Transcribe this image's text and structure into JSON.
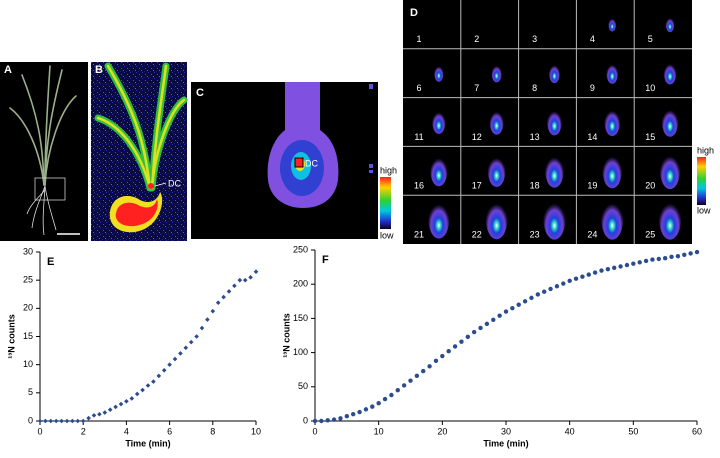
{
  "panel_labels": [
    "A",
    "B",
    "C",
    "D"
  ],
  "panel_b": {
    "annotation": "DC"
  },
  "panel_c": {
    "annotation": "DC",
    "scale_high": "high",
    "scale_low": "low"
  },
  "panel_d": {
    "frames": [
      "1",
      "2",
      "3",
      "4",
      "5",
      "6",
      "7",
      "8",
      "9",
      "10",
      "11",
      "12",
      "13",
      "14",
      "15",
      "16",
      "17",
      "18",
      "19",
      "20",
      "21",
      "22",
      "23",
      "24",
      "25"
    ],
    "scale_high": "high",
    "scale_low": "low"
  },
  "chart_data": [
    {
      "type": "scatter",
      "label": "E",
      "xlabel": "Time (min)",
      "ylabel": "¹³N counts",
      "color": "#2b4c8e",
      "marker": "diamond",
      "x": [
        0,
        0.25,
        0.5,
        0.75,
        1,
        1.25,
        1.5,
        1.75,
        2,
        2.25,
        2.5,
        2.75,
        3,
        3.25,
        3.5,
        3.75,
        4,
        4.25,
        4.5,
        4.75,
        5,
        5.25,
        5.5,
        5.75,
        6,
        6.25,
        6.5,
        6.75,
        7,
        7.25,
        7.5,
        7.75,
        8,
        8.25,
        8.5,
        8.75,
        9,
        9.25,
        9.5,
        9.75,
        10
      ],
      "values": [
        0,
        0,
        0,
        0,
        0,
        0,
        0,
        0,
        0,
        0.5,
        1,
        1.2,
        1.5,
        2,
        2.5,
        3,
        3.5,
        4,
        4.8,
        5.5,
        6.3,
        7,
        8,
        9,
        10,
        11,
        12,
        13,
        14,
        15,
        16.5,
        18,
        19.5,
        21,
        22,
        23,
        24,
        25,
        25,
        25.5,
        26.5
      ],
      "xlim": [
        0,
        10
      ],
      "ylim": [
        0,
        30
      ],
      "xticks": [
        0,
        2,
        4,
        6,
        8,
        10
      ],
      "yticks": [
        0,
        5,
        10,
        15,
        20,
        25,
        30
      ]
    },
    {
      "type": "scatter",
      "label": "F",
      "xlabel": "Time (min)",
      "ylabel": "¹³N counts",
      "color": "#2b4c8e",
      "marker": "circle",
      "x": [
        0,
        1,
        2,
        3,
        4,
        5,
        6,
        7,
        8,
        9,
        10,
        11,
        12,
        13,
        14,
        15,
        16,
        17,
        18,
        19,
        20,
        21,
        22,
        23,
        24,
        25,
        26,
        27,
        28,
        29,
        30,
        31,
        32,
        33,
        34,
        35,
        36,
        37,
        38,
        39,
        40,
        41,
        42,
        43,
        44,
        45,
        46,
        47,
        48,
        49,
        50,
        51,
        52,
        53,
        54,
        55,
        56,
        57,
        58,
        59,
        60
      ],
      "values": [
        0,
        0,
        1,
        2,
        4,
        7,
        10,
        13,
        17,
        21,
        26,
        32,
        38,
        45,
        52,
        59,
        66,
        73,
        80,
        88,
        95,
        102,
        109,
        116,
        123,
        130,
        136,
        142,
        148,
        154,
        160,
        165,
        170,
        175,
        180,
        185,
        189,
        193,
        197,
        201,
        205,
        208,
        211,
        214,
        217,
        220,
        222,
        224,
        226,
        228,
        230,
        232,
        234,
        236,
        237,
        238,
        240,
        241,
        243,
        245,
        247
      ],
      "xlim": [
        0,
        60
      ],
      "ylim": [
        0,
        250
      ],
      "xticks": [
        0,
        10,
        20,
        30,
        40,
        50,
        60
      ],
      "yticks": [
        0,
        50,
        100,
        150,
        200,
        250
      ]
    }
  ]
}
